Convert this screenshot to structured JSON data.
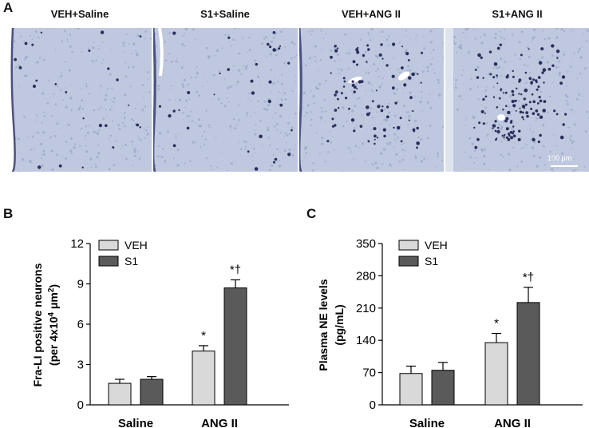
{
  "panels": {
    "a": "A",
    "b": "B",
    "c": "C"
  },
  "micrographs": {
    "titles": [
      "VEH+Saline",
      "S1+Saline",
      "VEH+ANG II",
      "S1+ANG II"
    ],
    "scale_bar": "100 μm",
    "colors": {
      "background": "#bfc8de",
      "stain": "#2b2e5a"
    },
    "stain_density": [
      0.15,
      0.2,
      0.55,
      0.85
    ]
  },
  "chart_data": [
    {
      "type": "bar",
      "panel": "B",
      "categories": [
        "Saline",
        "ANG II"
      ],
      "series": [
        {
          "name": "VEH",
          "values": [
            1.6,
            4.0
          ],
          "errors": [
            0.3,
            0.4
          ],
          "color": "#d9d9d9"
        },
        {
          "name": "S1",
          "values": [
            1.9,
            8.7
          ],
          "errors": [
            0.2,
            0.6
          ],
          "color": "#5a5a5a"
        }
      ],
      "annotations": [
        {
          "category": "ANG II",
          "series": "VEH",
          "text": "*"
        },
        {
          "category": "ANG II",
          "series": "S1",
          "text": "*†"
        }
      ],
      "ylabel_line1": "Fra-LI positive neurons",
      "ylabel_line2_pre": "(per 4x10",
      "ylabel_line2_sup1": "4",
      "ylabel_line2_mid": " μm",
      "ylabel_line2_sup2": "2",
      "ylabel_line2_post": ")",
      "ylim": [
        0,
        12
      ],
      "yticks": [
        "0",
        "3",
        "6",
        "9",
        "12"
      ],
      "legend_position": "top-left"
    },
    {
      "type": "bar",
      "panel": "C",
      "categories": [
        "Saline",
        "ANG II"
      ],
      "series": [
        {
          "name": "VEH",
          "values": [
            68,
            135
          ],
          "errors": [
            16,
            20
          ],
          "color": "#d9d9d9"
        },
        {
          "name": "S1",
          "values": [
            75,
            222
          ],
          "errors": [
            17,
            33
          ],
          "color": "#5a5a5a"
        }
      ],
      "annotations": [
        {
          "category": "ANG II",
          "series": "VEH",
          "text": "*"
        },
        {
          "category": "ANG II",
          "series": "S1",
          "text": "*†"
        }
      ],
      "ylabel_line1": "Plasma NE levels",
      "ylabel_line2": "(pg/mL)",
      "ylim": [
        0,
        350
      ],
      "yticks": [
        "0",
        "70",
        "140",
        "210",
        "280",
        "350"
      ],
      "legend_position": "top-left"
    }
  ]
}
